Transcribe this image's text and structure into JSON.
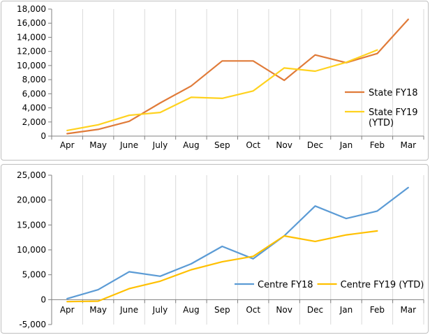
{
  "chart_data": [
    {
      "type": "line",
      "categories": [
        "Apr",
        "May",
        "June",
        "July",
        "Aug",
        "Sep",
        "Oct",
        "Nov",
        "Dec",
        "Jan",
        "Feb",
        "Mar"
      ],
      "ylim": [
        0,
        18000
      ],
      "yticks": [
        0,
        2000,
        4000,
        6000,
        8000,
        10000,
        12000,
        14000,
        16000,
        18000
      ],
      "ytick_labels": [
        "0",
        "2,000",
        "4,000",
        "6,000",
        "8,000",
        "10,000",
        "12,000",
        "14,000",
        "16,000",
        "18,000"
      ],
      "grid": "vertical category dividers",
      "legend_position": "right",
      "series": [
        {
          "name": "State FY18",
          "color": "#e07b39",
          "values": [
            350,
            950,
            2100,
            4700,
            7100,
            10650,
            10650,
            7900,
            11500,
            10400,
            11700,
            16550
          ]
        },
        {
          "name": "State FY19 (YTD)",
          "color": "#ffd21f",
          "values": [
            800,
            1600,
            2950,
            3350,
            5500,
            5350,
            6400,
            9650,
            9200,
            10450,
            12200,
            null
          ]
        }
      ]
    },
    {
      "type": "line",
      "categories": [
        "Apr",
        "May",
        "June",
        "July",
        "Aug",
        "Sep",
        "Oct",
        "Nov",
        "Dec",
        "Jan",
        "Feb",
        "Mar"
      ],
      "ylim": [
        -5000,
        25000
      ],
      "yticks": [
        -5000,
        0,
        5000,
        10000,
        15000,
        20000,
        25000
      ],
      "ytick_labels": [
        "-5,000",
        "0",
        "5,000",
        "10,000",
        "15,000",
        "20,000",
        "25,000"
      ],
      "grid": "vertical category dividers",
      "legend_position": "bottom-right",
      "series": [
        {
          "name": "Centre FY18",
          "color": "#5b9bd5",
          "values": [
            200,
            2000,
            5600,
            4700,
            7200,
            10700,
            8200,
            12800,
            18800,
            16300,
            17800,
            22500
          ]
        },
        {
          "name": "Centre FY19 (YTD)",
          "color": "#ffc000",
          "values": [
            -400,
            -300,
            2200,
            3700,
            6000,
            7600,
            8700,
            12800,
            11700,
            13000,
            13800,
            null
          ]
        }
      ]
    }
  ]
}
